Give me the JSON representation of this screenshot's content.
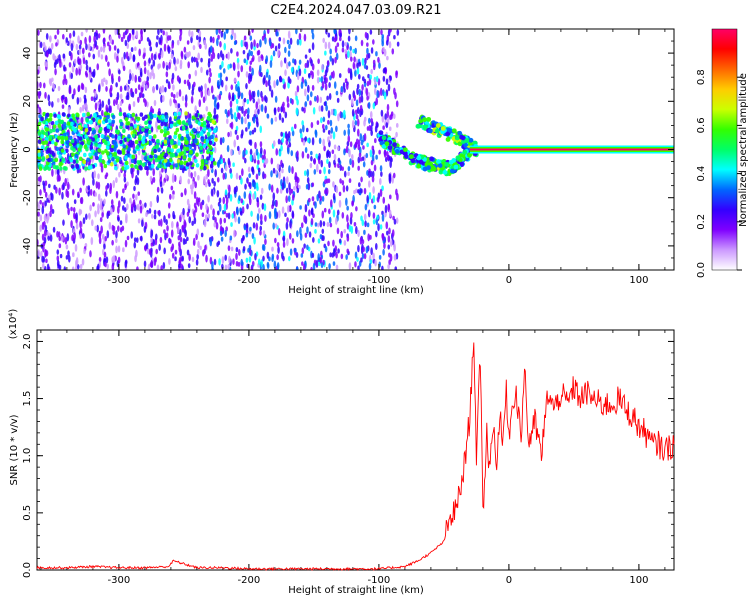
{
  "figure": {
    "title": "C2E4.2024.047.03.09.R21"
  },
  "colorbar": {
    "label": "Normalized spectral amplitude",
    "ticks": [
      "0.0",
      "0.2",
      "0.4",
      "0.6",
      "0.8"
    ],
    "colors": [
      "#ffffff",
      "#cc99ff",
      "#7f00ff",
      "#3300ff",
      "#0066ff",
      "#00ffff",
      "#00ff66",
      "#33ff00",
      "#ccff00",
      "#ffcc00",
      "#ff6600",
      "#ff0000",
      "#ff0066"
    ]
  },
  "chart_data": [
    {
      "type": "heatmap",
      "title": "",
      "xlabel": "Height of straight line (km)",
      "ylabel": "Frequency (Hz)",
      "xlim": [
        -363,
        127
      ],
      "ylim": [
        -50,
        50
      ],
      "xticks": [
        -300,
        -200,
        -100,
        0,
        100
      ],
      "xtick_labels": [
        "-300",
        "-200",
        "-100",
        "0",
        "100"
      ],
      "yticks": [
        -40,
        -20,
        0,
        20,
        40
      ],
      "ytick_labels": [
        "-40",
        "-20",
        "0",
        "20",
        "40"
      ],
      "value_range": [
        0,
        1
      ],
      "bands": [
        {
          "name": "diffuse-broadband",
          "x": [
            -363,
            -85
          ],
          "y": [
            -50,
            50
          ],
          "typical_value": 0.15
        },
        {
          "name": "low-altitude-cluster",
          "x": [
            -363,
            -225
          ],
          "y": [
            -8,
            15
          ],
          "typical_value": 0.35
        },
        {
          "name": "converging-upper-arm",
          "x": [
            [
              -70,
              12
            ],
            [
              -40,
              5
            ],
            [
              -25,
              0
            ]
          ],
          "value": 0.5
        },
        {
          "name": "converging-lower-arm",
          "x": [
            [
              -100,
              5
            ],
            [
              -70,
              -5
            ],
            [
              -45,
              -8
            ],
            [
              -30,
              -1
            ]
          ],
          "value": 0.45
        },
        {
          "name": "coherent-line",
          "x": [
            -30,
            127
          ],
          "y": [
            0,
            0
          ],
          "value": 1.0
        }
      ]
    },
    {
      "type": "line",
      "title": "",
      "xlabel": "Height of straight line (km)",
      "ylabel": "SNR (10 * v/v)",
      "multiplier_label": "(x10⁴)",
      "xlim": [
        -363,
        127
      ],
      "ylim": [
        0,
        2.1
      ],
      "xticks": [
        -300,
        -200,
        -100,
        0,
        100
      ],
      "xtick_labels": [
        "-300",
        "-200",
        "-100",
        "0",
        "100"
      ],
      "yticks": [
        0,
        0.5,
        1,
        1.5,
        2
      ],
      "ytick_labels": [
        "0.0",
        "0.5",
        "1.0",
        "1.5",
        "2.0"
      ],
      "series": [
        {
          "color": "#ff0000",
          "x": [
            -363,
            -340,
            -320,
            -300,
            -280,
            -262,
            -258,
            -240,
            -220,
            -200,
            -180,
            -150,
            -120,
            -100,
            -90,
            -80,
            -70,
            -60,
            -50,
            -45,
            -40,
            -35,
            -30,
            -27,
            -25,
            -22,
            -20,
            -17,
            -15,
            -12,
            -10,
            -7,
            -5,
            -2,
            0,
            5,
            10,
            12,
            15,
            20,
            25,
            30,
            35,
            40,
            45,
            50,
            55,
            60,
            65,
            70,
            75,
            80,
            85,
            90,
            95,
            100,
            105,
            110,
            115,
            120,
            127
          ],
          "y": [
            0.02,
            0.02,
            0.03,
            0.02,
            0.02,
            0.03,
            0.08,
            0.02,
            0.02,
            0.01,
            0.01,
            0.01,
            0.01,
            0.01,
            0.02,
            0.03,
            0.08,
            0.15,
            0.25,
            0.45,
            0.55,
            0.85,
            1.35,
            2.08,
            1.0,
            1.85,
            0.5,
            1.2,
            0.9,
            1.3,
            0.9,
            1.35,
            1.1,
            1.55,
            1.2,
            1.6,
            1.15,
            1.85,
            1.1,
            1.3,
            1.0,
            1.55,
            1.4,
            1.55,
            1.45,
            1.6,
            1.5,
            1.55,
            1.5,
            1.45,
            1.45,
            1.45,
            1.5,
            1.4,
            1.35,
            1.25,
            1.2,
            1.1,
            1.1,
            1.05,
            1.1
          ]
        }
      ]
    }
  ]
}
